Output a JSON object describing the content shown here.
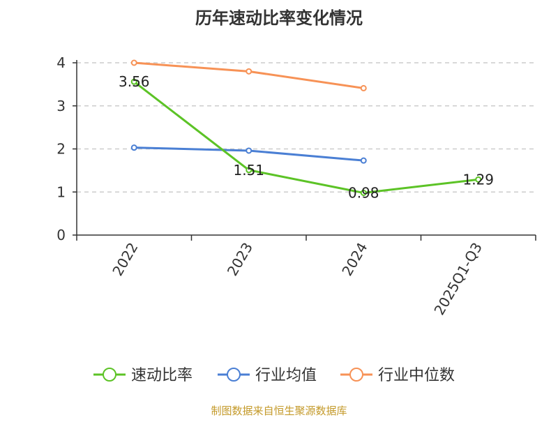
{
  "chart_data": {
    "type": "line",
    "title": "历年速动比率变化情况",
    "categories": [
      "2022",
      "2023",
      "2024",
      "2025Q1-Q3"
    ],
    "ylim": [
      0,
      4
    ],
    "yticks": [
      0,
      1,
      2,
      3,
      4
    ],
    "grid": true,
    "legend_position": "bottom",
    "series": [
      {
        "name": "速动比率",
        "color": "#5cc326",
        "values": [
          3.56,
          1.51,
          0.98,
          1.29
        ],
        "show_labels": true
      },
      {
        "name": "行业均值",
        "color": "#4a7fd4",
        "values": [
          2.03,
          1.96,
          1.73,
          null
        ],
        "show_labels": false
      },
      {
        "name": "行业中位数",
        "color": "#f79256",
        "values": [
          4.0,
          3.8,
          3.41,
          null
        ],
        "show_labels": false
      }
    ]
  },
  "source": "制图数据来自恒生聚源数据库"
}
